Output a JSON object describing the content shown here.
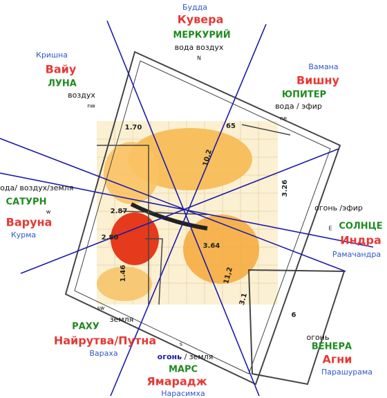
{
  "directions": {
    "north": {
      "avatar": "Будда",
      "deity": "Кувера",
      "planet": "МЕРКУРИЙ",
      "elements": "вода воздух",
      "code": "N"
    },
    "northwest": {
      "avatar": "Кришна",
      "deity": "Вайу",
      "planet": "ЛУНА",
      "elements": "воздух",
      "code": "nw"
    },
    "northeast": {
      "avatar": "Вамана",
      "deity": "Вишну",
      "planet": "ЮПИТЕР",
      "elements": "вода / эфир",
      "code": "ne"
    },
    "west": {
      "elements": "вода/ воздух/земля",
      "planet": "САТУРН",
      "code": "w",
      "deity": "Варуна",
      "avatar": "Курма"
    },
    "east": {
      "elements": "огонь /эфир",
      "code": "E",
      "planet": "СОЛНЦЕ",
      "deity": "Индра",
      "avatar": "Рамачандра"
    },
    "southwest": {
      "code": "sw",
      "elements": "земля",
      "planet": "РАХУ",
      "deity": "Найрутва/Путна",
      "avatar": "Вараха"
    },
    "south": {
      "code": "s",
      "element_fire": "огонь",
      "element_rest": "/ земля",
      "planet": "МАРС",
      "deity": "Ямарадж",
      "avatar": "Нарасимха"
    },
    "southeast": {
      "elements": "огонь",
      "planet": "ВЕНЕРА",
      "deity": "Агни",
      "avatar": "Парашурама"
    }
  },
  "plan_dimensions": [
    "1.70",
    "65",
    "3.26",
    "2.87",
    "2.80",
    "3.64",
    "10,2",
    "11,2",
    "3.1",
    "1.46",
    "6"
  ]
}
